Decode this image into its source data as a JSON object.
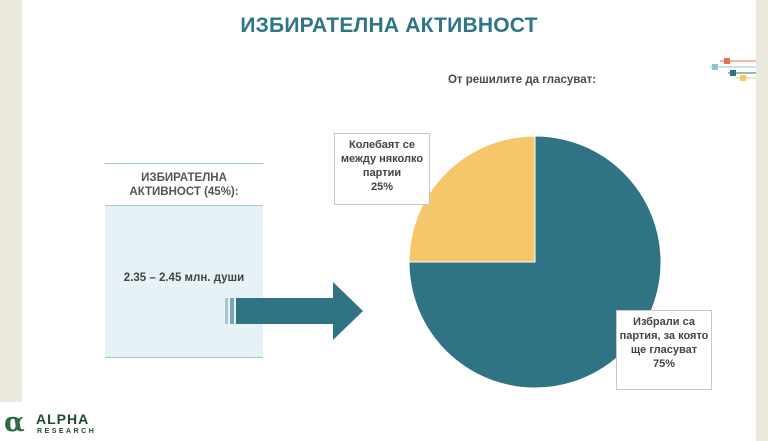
{
  "slide": {
    "title": "ИЗБИРАТЕЛНА АКТИВНОСТ",
    "turnout_label": "ИЗБИРАТЕЛНА АКТИВНОСТ (45%):",
    "turnout_value": "2.35 – 2.45 млн. души"
  },
  "logo": {
    "mark": "α",
    "name": "ALPHA",
    "sub": "RESEARCH"
  },
  "colors": {
    "decided": "#2f7385",
    "undecided": "#f6c66b",
    "title": "#2e7585"
  },
  "chart_data": {
    "type": "pie",
    "title": "От решилите да гласуват:",
    "slices": [
      {
        "label": "Избрали са партия, за която ще гласуват",
        "value": 75,
        "display": "75%",
        "color": "#2f7385"
      },
      {
        "label": "Колебаят се между няколко партии",
        "value": 25,
        "display": "25%",
        "color": "#f6c66b"
      }
    ],
    "start_angle": "12 o'clock",
    "direction": "clockwise",
    "legend": "callouts"
  }
}
